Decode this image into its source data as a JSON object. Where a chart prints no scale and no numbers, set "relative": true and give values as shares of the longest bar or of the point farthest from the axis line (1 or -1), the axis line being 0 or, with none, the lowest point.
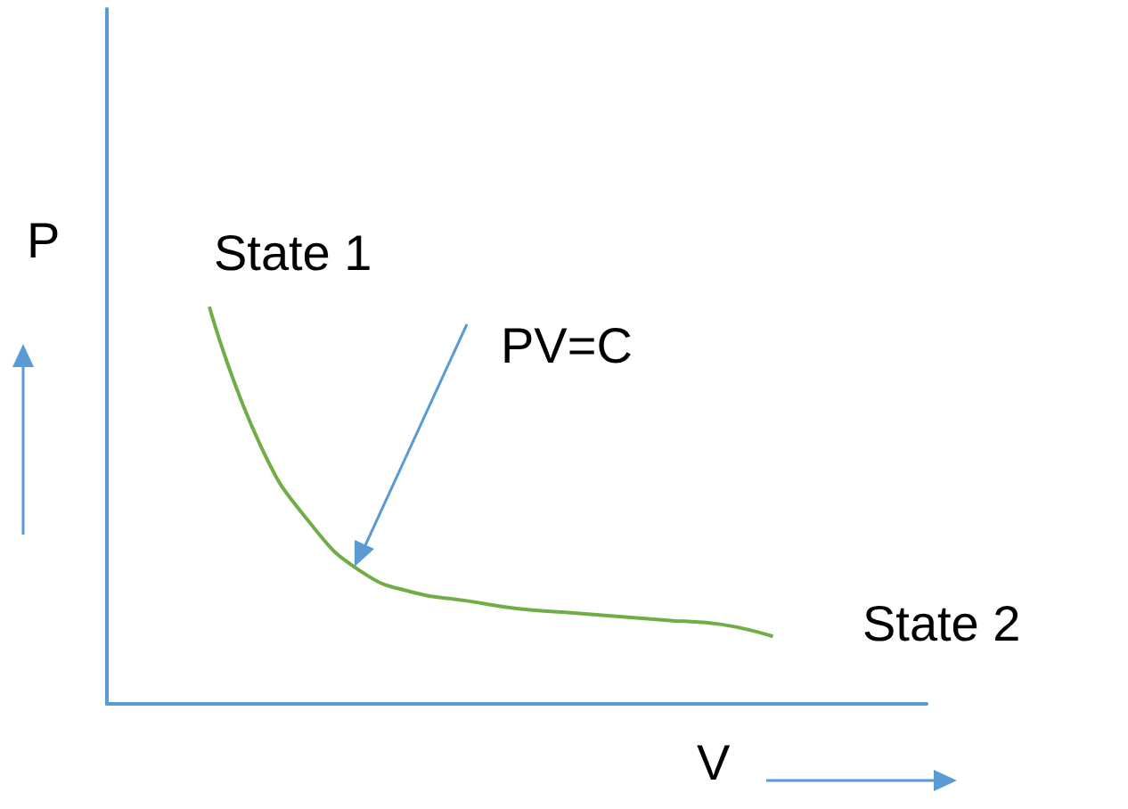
{
  "chart_data": {
    "type": "line",
    "relative": true,
    "xlabel": "V",
    "ylabel": "P",
    "categories": [
      null,
      null,
      null,
      null,
      null,
      null,
      null,
      null,
      null,
      null,
      null,
      null,
      null,
      null,
      null,
      null,
      null
    ],
    "series": [
      {
        "color": "#70ad47",
        "values": [
          null,
          null,
          1,
          0.65,
          0.45,
          0.33,
          0.28,
          0.26,
          0.24,
          0.23,
          0.22,
          0.21,
          0.2,
          0.17,
          null,
          null,
          null
        ]
      }
    ],
    "annotations": [
      "State 1",
      "PV=C",
      "State 2"
    ],
    "marker": "none",
    "grid": false
  }
}
